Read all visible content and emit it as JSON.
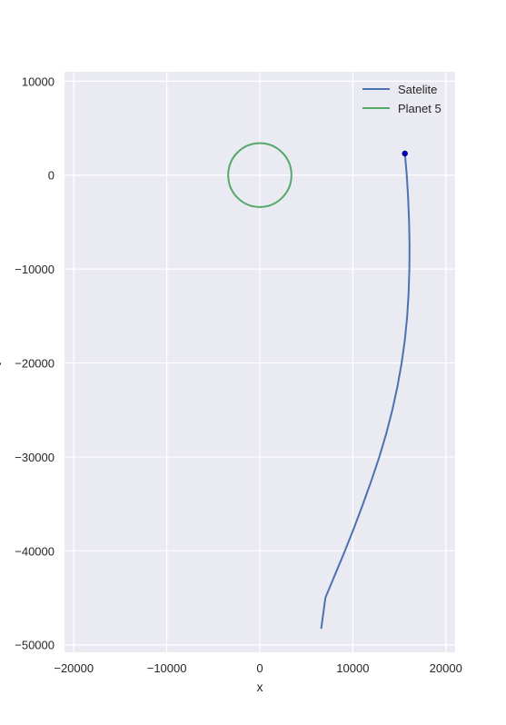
{
  "chart_data": {
    "type": "line",
    "title": "",
    "xlabel": "x",
    "ylabel": "y",
    "xlim": [
      -21000,
      21000
    ],
    "ylim": [
      -50800,
      11000
    ],
    "xticks": [
      -20000,
      -10000,
      0,
      10000,
      20000
    ],
    "xtick_labels": [
      "−20000",
      "−10000",
      "0",
      "10000",
      "20000"
    ],
    "yticks": [
      10000,
      0,
      -10000,
      -20000,
      -30000,
      -40000,
      -50000
    ],
    "ytick_labels": [
      "10000",
      "0",
      "−10000",
      "−20000",
      "−30000",
      "−40000",
      "−50000"
    ],
    "grid": true,
    "legend_position": "top-right",
    "colors": {
      "background": "#eaeaf2",
      "grid": "#ffffff",
      "satelite": "#4c72b0",
      "planet": "#55a868",
      "marker": "#0000cc"
    },
    "series": [
      {
        "name": "Satelite",
        "x": [
          15600,
          15800,
          15950,
          16050,
          16100,
          16080,
          16000,
          15850,
          15600,
          15250,
          14800,
          14250,
          13600,
          12850,
          12000,
          11100,
          10150,
          9150,
          8100,
          7050,
          6600
        ],
        "y": [
          2300,
          0,
          -2500,
          -5000,
          -7500,
          -10000,
          -12500,
          -15000,
          -17500,
          -20000,
          -22500,
          -25000,
          -27500,
          -30000,
          -32500,
          -35000,
          -37500,
          -40000,
          -42500,
          -45000,
          -48300
        ]
      },
      {
        "name": "Planet 5",
        "shape": "circle",
        "center": [
          0,
          0
        ],
        "radius": 3400
      }
    ],
    "markers": [
      {
        "x": 15600,
        "y": 2300
      }
    ]
  }
}
